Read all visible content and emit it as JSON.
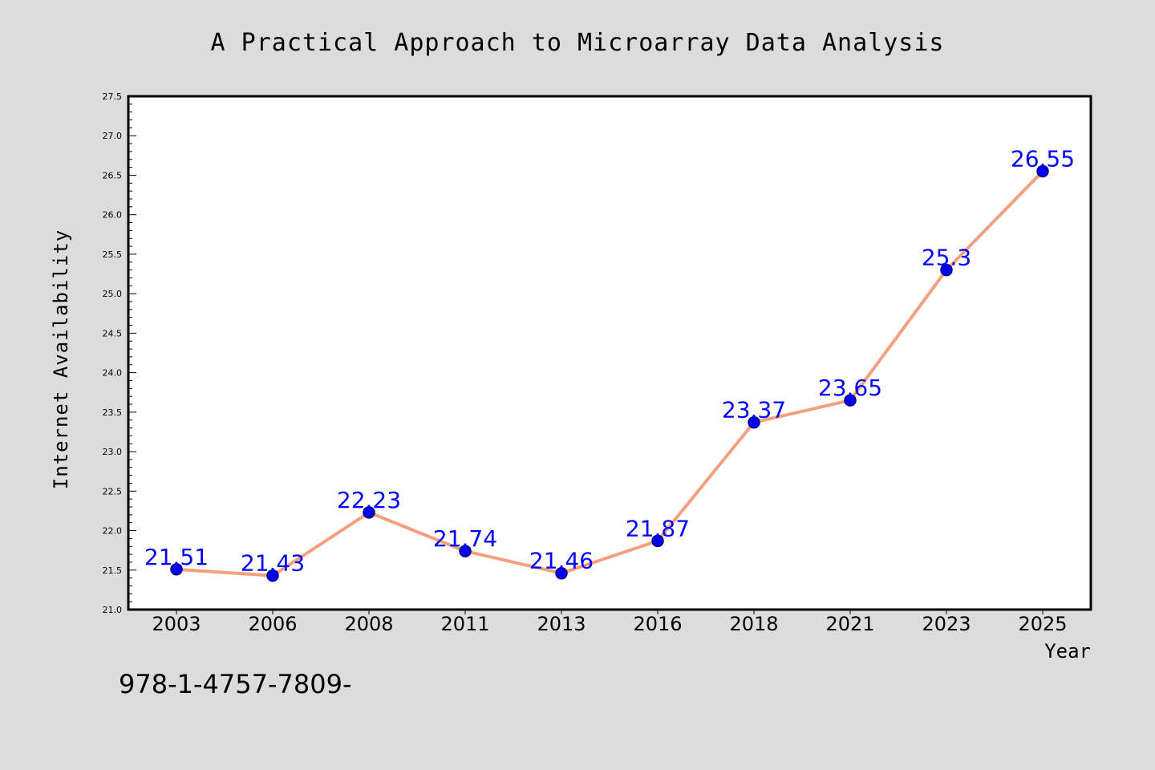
{
  "chart_data": {
    "type": "line",
    "title": "A Practical Approach to Microarray Data Analysis",
    "xlabel": "Year",
    "ylabel": "Internet Availability",
    "categories": [
      "2003",
      "2006",
      "2008",
      "2011",
      "2013",
      "2016",
      "2018",
      "2021",
      "2023",
      "2025"
    ],
    "series": [
      {
        "values": [
          21.51,
          21.43,
          22.23,
          21.74,
          21.46,
          21.87,
          23.37,
          23.65,
          25.3,
          26.55
        ]
      }
    ],
    "data_labels": [
      "21.51",
      "21.43",
      "22.23",
      "21.74",
      "21.46",
      "21.87",
      "23.37",
      "23.65",
      "25.3",
      "26.55"
    ],
    "ylim": [
      21.0,
      27.5
    ],
    "y_major_ticks": [
      "21.0",
      "21.5",
      "22.0",
      "22.5",
      "23.0",
      "23.5",
      "24.0",
      "24.5",
      "25.0",
      "25.5",
      "26.0",
      "26.5",
      "27.0",
      "27.5"
    ],
    "grid": false,
    "legend": "none",
    "colors": {
      "line": "#f4a07e",
      "marker_fill": "#0000ee",
      "marker_edge": "#000080",
      "data_label": "#0000ff",
      "background": "#dcdcdc",
      "plot_area": "#ffffff"
    }
  },
  "footer_text": "978-1-4757-7809-"
}
